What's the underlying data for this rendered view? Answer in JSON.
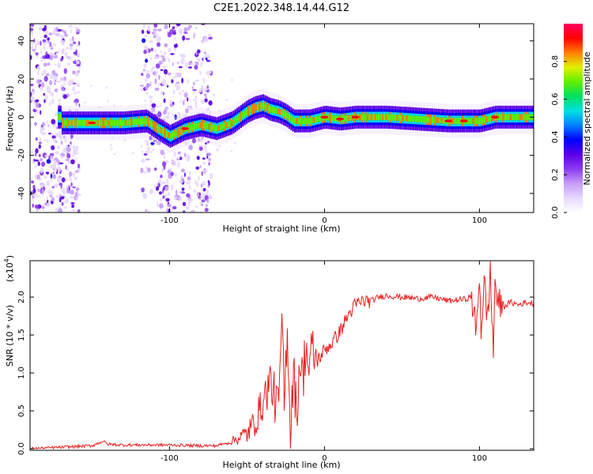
{
  "title": "C2E1.2022.348.14.44.G12",
  "chart_data": [
    {
      "type": "heatmap",
      "xlabel": "Height of straight line (km)",
      "ylabel": "Frequency (Hz)",
      "xlim": [
        -190,
        135
      ],
      "ylim": [
        -50,
        49
      ],
      "xticks": [
        -100,
        0,
        100
      ],
      "yticks": [
        -40,
        -20,
        0,
        20,
        40
      ],
      "colorbar": {
        "label": "Normalized spectral amplitude",
        "ticks": [
          0.0,
          0.2,
          0.4,
          0.6,
          0.8
        ],
        "range": [
          0,
          1
        ],
        "colormap": [
          "#ffffff",
          "#e8d8ff",
          "#c69cf7",
          "#8c3cf0",
          "#5b00e6",
          "#0000ff",
          "#0080ff",
          "#00e0e0",
          "#00e060",
          "#60f000",
          "#e0f000",
          "#ff8000",
          "#ff0000",
          "#ff0060"
        ]
      },
      "ridge": {
        "x": [
          -170,
          -150,
          -130,
          -115,
          -108,
          -100,
          -90,
          -80,
          -70,
          -60,
          -50,
          -45,
          -40,
          -35,
          -30,
          -25,
          -20,
          -10,
          0,
          10,
          20,
          40,
          60,
          80,
          100,
          110,
          120,
          135
        ],
        "y": [
          -3,
          -3,
          -3,
          -2,
          -6,
          -10,
          -6,
          -4,
          -6,
          -3,
          3,
          5,
          6,
          4,
          3,
          1,
          -2,
          -2,
          0,
          -1,
          0,
          0,
          -1,
          -2,
          -2,
          0,
          0,
          0
        ]
      },
      "noise_bands": [
        [
          -190,
          -158
        ],
        [
          -118,
          -73
        ]
      ]
    },
    {
      "type": "line",
      "xlabel": "Height of straight line (km)",
      "ylabel": "SNR (10 * v/v)",
      "yscale_label": "(x10",
      "yscale_exp": "4",
      "y_multiplier": 10000,
      "xlim": [
        -190,
        135
      ],
      "ylim": [
        -0.02,
        2.48
      ],
      "xticks": [
        -100,
        0,
        100
      ],
      "yticks": [
        0.0,
        0.5,
        1.0,
        1.5,
        2.0
      ],
      "color": "#e82020",
      "series": [
        {
          "x": [
            -190,
            -170,
            -150,
            -143,
            -140,
            -130,
            -110,
            -100,
            -80,
            -70,
            -62,
            -58,
            -50,
            -45,
            -40,
            -35,
            -30,
            -27,
            -26,
            -24,
            -22,
            -20,
            -18,
            -16,
            -14,
            -12,
            -10,
            -8,
            -5,
            0,
            5,
            10,
            15,
            20,
            25,
            30,
            35,
            40,
            50,
            60,
            70,
            80,
            90,
            95,
            98,
            100,
            101,
            103,
            105,
            107,
            109,
            110,
            112,
            114,
            116,
            120,
            125,
            130,
            135
          ],
          "y": [
            0.0,
            0.02,
            0.04,
            0.1,
            0.06,
            0.05,
            0.05,
            0.05,
            0.04,
            0.04,
            0.08,
            0.12,
            0.2,
            0.35,
            0.6,
            0.9,
            0.5,
            1.65,
            0.5,
            1.7,
            0.2,
            1.1,
            0.4,
            1.2,
            0.9,
            1.4,
            1.0,
            1.3,
            1.15,
            1.3,
            1.4,
            1.55,
            1.75,
            1.9,
            1.95,
            1.95,
            2.0,
            2.02,
            2.0,
            1.98,
            2.0,
            1.95,
            1.97,
            2.0,
            1.5,
            2.35,
            1.55,
            2.2,
            1.7,
            2.3,
            1.25,
            2.25,
            1.85,
            1.95,
            1.88,
            1.93,
            1.9,
            1.93,
            1.92
          ]
        }
      ]
    }
  ]
}
